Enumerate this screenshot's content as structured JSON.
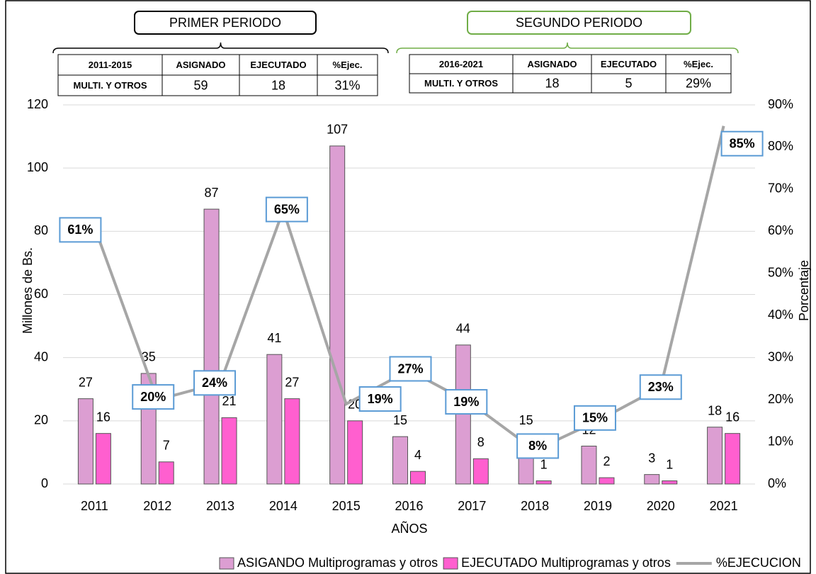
{
  "chart_data": {
    "type": "bar",
    "categories": [
      "2011",
      "2012",
      "2013",
      "2014",
      "2015",
      "2016",
      "2017",
      "2018",
      "2019",
      "2020",
      "2021"
    ],
    "series": [
      {
        "name": "ASIGANDO Multiprogramas y otros",
        "color": "#dc9ed2",
        "values": [
          27,
          35,
          87,
          41,
          107,
          15,
          44,
          15,
          12,
          3,
          18
        ]
      },
      {
        "name": "EJECUTADO Multiprogramas y otros",
        "color": "#ff5fcf",
        "values": [
          16,
          7,
          21,
          27,
          20,
          4,
          8,
          1,
          2,
          1,
          16
        ]
      },
      {
        "name": "%EJECUCION",
        "color": "#a6a6a6",
        "type": "line",
        "axis": "y2",
        "values": [
          61,
          20,
          24,
          65,
          19,
          27,
          19,
          8,
          15,
          23,
          85
        ],
        "value_labels": [
          "61%",
          "20%",
          "24%",
          "65%",
          "19%",
          "27%",
          "19%",
          "8%",
          "15%",
          "23%",
          "85%"
        ]
      }
    ],
    "ylim": [
      0,
      120
    ],
    "yticks": [
      0,
      20,
      40,
      60,
      80,
      100,
      120
    ],
    "y2lim": [
      0,
      90
    ],
    "y2ticks": [
      {
        "value": 0,
        "label": "0%"
      },
      {
        "value": 10,
        "label": "10%"
      },
      {
        "value": 20,
        "label": "20%"
      },
      {
        "value": 30,
        "label": "30%"
      },
      {
        "value": 40,
        "label": "40%"
      },
      {
        "value": 50,
        "label": "50%"
      },
      {
        "value": 60,
        "label": "60%"
      },
      {
        "value": 70,
        "label": "70%"
      },
      {
        "value": 80,
        "label": "80%"
      },
      {
        "value": 90,
        "label": "90%"
      }
    ],
    "ylabel": "Millones de Bs.",
    "y2label": "Porcentaje",
    "xlabel": "AÑOS",
    "grid": true,
    "legend": "bottom"
  },
  "periods": [
    {
      "title": "PRIMER PERIODO",
      "header": [
        "2011-2015",
        "ASIGNADO",
        "EJECUTADO",
        "%Ejec."
      ],
      "row": [
        "MULTI. Y OTROS",
        "59",
        "18",
        "31%"
      ]
    },
    {
      "title": "SEGUNDO  PERIODO",
      "header": [
        "2016-2021",
        "ASIGNADO",
        "EJECUTADO",
        "%Ejec."
      ],
      "row": [
        "MULTI. Y OTROS",
        "18",
        "5",
        "29%"
      ]
    }
  ]
}
